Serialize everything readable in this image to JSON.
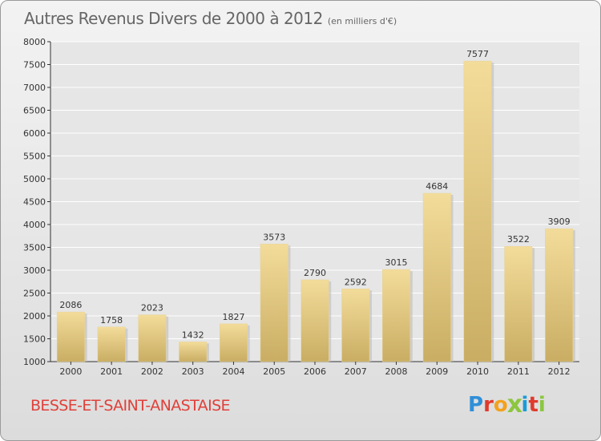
{
  "title": "Autres Revenus Divers de 2000 à 2012",
  "subtitle": "(en milliers d'€)",
  "commune": "BESSE-ET-SAINT-ANASTAISE",
  "logo": {
    "letters": [
      "P",
      "r",
      "o",
      "x",
      "i",
      "t",
      "i"
    ],
    "colors": [
      "#2f8fd8",
      "#e03a2e",
      "#f4a11d",
      "#8cc63e",
      "#1a9bd7",
      "#e03a2e",
      "#8cc63e"
    ]
  },
  "colors": {
    "bar_light": "#f3dc9a",
    "bar_dark": "#c9ad63",
    "grid": "#ffffff",
    "axis": "#333333"
  },
  "chart_data": {
    "type": "bar",
    "categories": [
      "2000",
      "2001",
      "2002",
      "2003",
      "2004",
      "2005",
      "2006",
      "2007",
      "2008",
      "2009",
      "2010",
      "2011",
      "2012"
    ],
    "values": [
      2086,
      1758,
      2023,
      1432,
      1827,
      3573,
      2790,
      2592,
      3015,
      4684,
      7577,
      3522,
      3909
    ],
    "value_labels": [
      "2086",
      "1758",
      "2023",
      "1432",
      "1827",
      "3573",
      "2790",
      "2592",
      "3015",
      "4684",
      "7577",
      "3522",
      "3909"
    ],
    "yticks": [
      "1000",
      "1500",
      "2000",
      "2500",
      "3000",
      "3500",
      "4000",
      "4500",
      "5000",
      "5500",
      "6000",
      "6500",
      "7000",
      "7500",
      "8000"
    ],
    "title": "Autres Revenus Divers de 2000 à 2012",
    "xlabel": "",
    "ylabel": "",
    "ylim": [
      1000,
      8000
    ],
    "grid": true
  }
}
